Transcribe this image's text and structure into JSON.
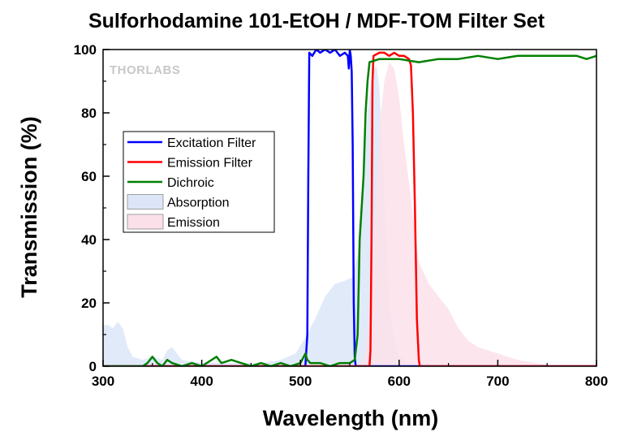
{
  "chart_data": {
    "type": "line",
    "title": "Sulforhodamine 101-EtOH / MDF-TOM Filter Set",
    "xlabel": "Wavelength (nm)",
    "ylabel": "Transmission (%)",
    "xlim": [
      300,
      800
    ],
    "ylim": [
      0,
      100
    ],
    "xticks": [
      300,
      400,
      500,
      600,
      700,
      800
    ],
    "yticks": [
      0,
      20,
      40,
      60,
      80,
      100
    ],
    "grid": false,
    "legend_position": "center-left",
    "watermark": "THORLABS",
    "series": [
      {
        "name": "Excitation Filter",
        "kind": "line",
        "color": "#0000ff",
        "points": [
          [
            300,
            0
          ],
          [
            505,
            0
          ],
          [
            507,
            10
          ],
          [
            508,
            60
          ],
          [
            509,
            99
          ],
          [
            512,
            98
          ],
          [
            516,
            100
          ],
          [
            520,
            99
          ],
          [
            525,
            100
          ],
          [
            530,
            99
          ],
          [
            535,
            100
          ],
          [
            540,
            98
          ],
          [
            545,
            99
          ],
          [
            548,
            98
          ],
          [
            549,
            94
          ],
          [
            550,
            100
          ],
          [
            551,
            98
          ],
          [
            552,
            93
          ],
          [
            553,
            70
          ],
          [
            554,
            20
          ],
          [
            555,
            3
          ],
          [
            556,
            0
          ],
          [
            800,
            0
          ]
        ]
      },
      {
        "name": "Emission Filter",
        "kind": "line",
        "color": "#ff0000",
        "points": [
          [
            300,
            0
          ],
          [
            570,
            0
          ],
          [
            571,
            5
          ],
          [
            572,
            40
          ],
          [
            573,
            90
          ],
          [
            574,
            98
          ],
          [
            580,
            99
          ],
          [
            585,
            99
          ],
          [
            590,
            98
          ],
          [
            595,
            99
          ],
          [
            600,
            98
          ],
          [
            605,
            98
          ],
          [
            610,
            97
          ],
          [
            612,
            95
          ],
          [
            614,
            80
          ],
          [
            616,
            50
          ],
          [
            618,
            15
          ],
          [
            620,
            2
          ],
          [
            621,
            0
          ],
          [
            800,
            0
          ]
        ]
      },
      {
        "name": "Dichroic",
        "kind": "line",
        "color": "#008000",
        "points": [
          [
            300,
            0
          ],
          [
            340,
            0
          ],
          [
            345,
            1
          ],
          [
            350,
            3
          ],
          [
            355,
            1
          ],
          [
            360,
            0
          ],
          [
            365,
            2
          ],
          [
            370,
            1
          ],
          [
            380,
            0
          ],
          [
            390,
            1
          ],
          [
            400,
            0
          ],
          [
            410,
            2
          ],
          [
            415,
            3
          ],
          [
            420,
            1
          ],
          [
            430,
            2
          ],
          [
            440,
            1
          ],
          [
            450,
            0
          ],
          [
            460,
            1
          ],
          [
            470,
            0
          ],
          [
            480,
            1
          ],
          [
            490,
            0
          ],
          [
            500,
            1
          ],
          [
            505,
            4
          ],
          [
            507,
            2
          ],
          [
            510,
            1
          ],
          [
            520,
            1
          ],
          [
            530,
            0
          ],
          [
            540,
            1
          ],
          [
            550,
            1
          ],
          [
            555,
            2
          ],
          [
            558,
            10
          ],
          [
            560,
            40
          ],
          [
            562,
            50
          ],
          [
            564,
            60
          ],
          [
            566,
            80
          ],
          [
            568,
            90
          ],
          [
            570,
            96
          ],
          [
            580,
            97
          ],
          [
            600,
            97
          ],
          [
            620,
            96
          ],
          [
            640,
            97
          ],
          [
            660,
            97
          ],
          [
            680,
            98
          ],
          [
            700,
            97
          ],
          [
            720,
            98
          ],
          [
            740,
            98
          ],
          [
            760,
            98
          ],
          [
            780,
            98
          ],
          [
            790,
            97
          ],
          [
            800,
            98
          ]
        ]
      },
      {
        "name": "Absorption",
        "kind": "area",
        "color": "#dce6f8",
        "points": [
          [
            300,
            13
          ],
          [
            305,
            13
          ],
          [
            310,
            12
          ],
          [
            315,
            14
          ],
          [
            320,
            12
          ],
          [
            325,
            6
          ],
          [
            330,
            3
          ],
          [
            340,
            2
          ],
          [
            350,
            3
          ],
          [
            360,
            2
          ],
          [
            365,
            5
          ],
          [
            370,
            6
          ],
          [
            375,
            4
          ],
          [
            380,
            2
          ],
          [
            400,
            1
          ],
          [
            420,
            1
          ],
          [
            440,
            1
          ],
          [
            460,
            1
          ],
          [
            480,
            2
          ],
          [
            495,
            4
          ],
          [
            505,
            9
          ],
          [
            515,
            15
          ],
          [
            525,
            22
          ],
          [
            535,
            26
          ],
          [
            545,
            27
          ],
          [
            552,
            28
          ],
          [
            558,
            35
          ],
          [
            563,
            55
          ],
          [
            568,
            80
          ],
          [
            573,
            93
          ],
          [
            577,
            95
          ],
          [
            580,
            88
          ],
          [
            583,
            70
          ],
          [
            586,
            45
          ],
          [
            590,
            20
          ],
          [
            595,
            8
          ],
          [
            600,
            3
          ],
          [
            610,
            1
          ],
          [
            620,
            0
          ],
          [
            800,
            0
          ]
        ]
      },
      {
        "name": "Emission",
        "kind": "area",
        "color": "#fbe0ea",
        "points": [
          [
            300,
            0
          ],
          [
            560,
            0
          ],
          [
            565,
            3
          ],
          [
            570,
            15
          ],
          [
            575,
            45
          ],
          [
            580,
            75
          ],
          [
            585,
            90
          ],
          [
            590,
            96
          ],
          [
            595,
            94
          ],
          [
            600,
            85
          ],
          [
            605,
            70
          ],
          [
            610,
            58
          ],
          [
            615,
            45
          ],
          [
            620,
            33
          ],
          [
            630,
            26
          ],
          [
            640,
            22
          ],
          [
            650,
            18
          ],
          [
            660,
            12
          ],
          [
            670,
            8
          ],
          [
            680,
            6
          ],
          [
            700,
            4
          ],
          [
            720,
            2
          ],
          [
            740,
            1
          ],
          [
            760,
            0
          ],
          [
            800,
            0
          ]
        ]
      }
    ]
  }
}
